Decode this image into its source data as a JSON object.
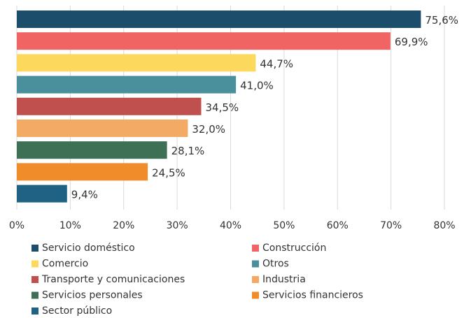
{
  "chart_data": {
    "type": "bar",
    "orientation": "horizontal",
    "categories": [
      "Servicio doméstico",
      "Construcción",
      "Comercio",
      "Otros",
      "Transporte y comunicaciones",
      "Industria",
      "Servicios personales",
      "Servicios financieros",
      "Sector público"
    ],
    "values": [
      75.6,
      69.9,
      44.7,
      41.0,
      34.5,
      32.0,
      28.1,
      24.5,
      9.4
    ],
    "value_labels": [
      "75,6%",
      "69,9%",
      "44,7%",
      "41,0%",
      "34,5%",
      "32,0%",
      "28,1%",
      "24,5%",
      "9,4%"
    ],
    "colors": [
      "#1c4e6b",
      "#f06464",
      "#fcd95c",
      "#4a8f9c",
      "#c0504d",
      "#f2aa65",
      "#3e7055",
      "#f18c2a",
      "#1f6283"
    ],
    "xlim": [
      0,
      80
    ],
    "xticks": [
      {
        "value": 0,
        "label": "0%"
      },
      {
        "value": 10,
        "label": "10%"
      },
      {
        "value": 20,
        "label": "20%"
      },
      {
        "value": 30,
        "label": "30%"
      },
      {
        "value": 40,
        "label": "40%"
      },
      {
        "value": 50,
        "label": "50%"
      },
      {
        "value": 60,
        "label": "60%"
      },
      {
        "value": 70,
        "label": "70%"
      },
      {
        "value": 80,
        "label": "80%"
      }
    ],
    "grid": true,
    "legend": "bottom"
  }
}
